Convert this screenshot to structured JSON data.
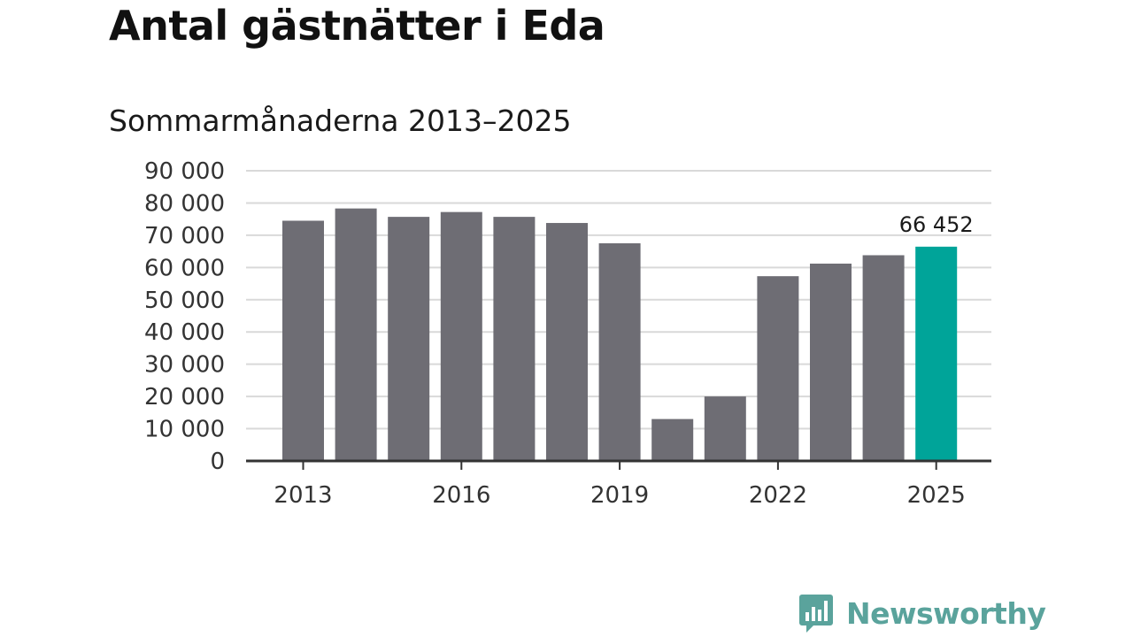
{
  "header": {
    "title": "Antal gästnätter i Eda",
    "subtitle": "Sommarmånaderna 2013–2025"
  },
  "colors": {
    "bar": "#6e6d74",
    "highlight": "#00a499",
    "grid": "#d9d9d9",
    "axis": "#333333",
    "brand": "#5aa39c"
  },
  "chart_data": {
    "type": "bar",
    "title": "Antal gästnätter i Eda",
    "subtitle": "Sommarmånaderna 2013–2025",
    "categories": [
      "2013",
      "2014",
      "2015",
      "2016",
      "2017",
      "2018",
      "2019",
      "2020",
      "2021",
      "2022",
      "2023",
      "2024",
      "2025"
    ],
    "values": [
      74500,
      78300,
      75700,
      77200,
      75700,
      73800,
      67500,
      13000,
      20000,
      57300,
      61200,
      63800,
      66452
    ],
    "highlight_index": 12,
    "highlight_label": "66 452",
    "x_tick_labels": [
      "2013",
      "2016",
      "2019",
      "2022",
      "2025"
    ],
    "y_ticks": [
      0,
      10000,
      20000,
      30000,
      40000,
      50000,
      60000,
      70000,
      80000,
      90000
    ],
    "y_tick_labels": [
      "0",
      "10 000",
      "20 000",
      "30 000",
      "40 000",
      "50 000",
      "60 000",
      "70 000",
      "80 000",
      "90 000"
    ],
    "ylim": [
      0,
      90000
    ],
    "grid": true,
    "legend": "none"
  },
  "branding": {
    "logo_text": "Newsworthy",
    "logo_icon": "chart-speech-bubble-icon"
  }
}
